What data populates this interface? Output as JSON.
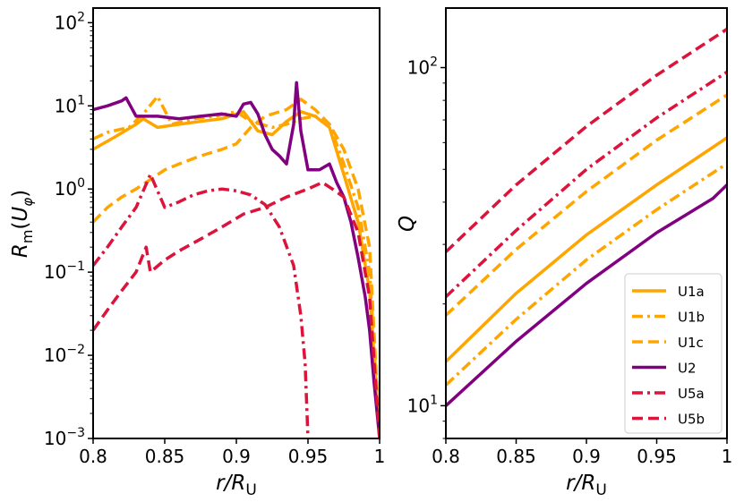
{
  "chart_data": [
    {
      "type": "line",
      "panel": "left",
      "xlabel": "r/R_U",
      "ylabel": "R_m(U_φ)",
      "yscale": "log",
      "xlim": [
        0.8,
        1.0
      ],
      "ylim": [
        0.001,
        150
      ],
      "x_ticks": [
        0.8,
        0.85,
        0.9,
        0.95,
        1.0
      ],
      "x_tick_labels": [
        "0.8",
        "0.85",
        "0.9",
        "0.95",
        "1"
      ],
      "y_ticks": [
        0.001,
        0.01,
        0.1,
        1,
        10,
        100
      ],
      "y_tick_labels": [
        {
          "base": "10",
          "exp": "−3"
        },
        {
          "base": "10",
          "exp": "−2"
        },
        {
          "base": "10",
          "exp": "−1"
        },
        {
          "base": "10",
          "exp": "0"
        },
        {
          "base": "10",
          "exp": "1"
        },
        {
          "base": "10",
          "exp": "2"
        }
      ],
      "series": [
        {
          "name": "U1a",
          "color": "#FFA500",
          "dash": "solid",
          "x": [
            0.8,
            0.815,
            0.83,
            0.835,
            0.845,
            0.86,
            0.875,
            0.89,
            0.905,
            0.915,
            0.925,
            0.935,
            0.945,
            0.955,
            0.965,
            0.975,
            0.985,
            0.993,
            1.0
          ],
          "y": [
            3.0,
            4.2,
            6.0,
            7.0,
            5.5,
            6.0,
            6.5,
            7.0,
            8.5,
            5.0,
            4.5,
            6.5,
            8.5,
            7.5,
            5.5,
            1.5,
            0.4,
            0.06,
            0.001
          ]
        },
        {
          "name": "U1b",
          "color": "#FFA500",
          "dash": "dashdot",
          "x": [
            0.8,
            0.81,
            0.825,
            0.835,
            0.845,
            0.855,
            0.87,
            0.885,
            0.9,
            0.91,
            0.925,
            0.935,
            0.945,
            0.955,
            0.965,
            0.975,
            0.985,
            0.993,
            1.0
          ],
          "y": [
            4.0,
            4.8,
            5.5,
            8.0,
            13.0,
            6.0,
            7.0,
            7.5,
            8.5,
            6.5,
            5.5,
            6.0,
            7.0,
            7.5,
            6.0,
            2.0,
            0.6,
            0.1,
            0.001
          ]
        },
        {
          "name": "U1c",
          "color": "#FFA500",
          "dash": "dashed",
          "x": [
            0.8,
            0.81,
            0.82,
            0.83,
            0.84,
            0.85,
            0.86,
            0.875,
            0.89,
            0.9,
            0.91,
            0.92,
            0.935,
            0.945,
            0.955,
            0.965,
            0.975,
            0.985,
            0.993,
            1.0
          ],
          "y": [
            0.4,
            0.6,
            0.8,
            1.0,
            1.3,
            1.7,
            2.0,
            2.5,
            3.0,
            3.5,
            5.5,
            7.5,
            9.0,
            12.0,
            9.0,
            6.0,
            3.0,
            1.0,
            0.2,
            0.001
          ]
        },
        {
          "name": "U2",
          "color": "#800080",
          "dash": "solid",
          "x": [
            0.8,
            0.81,
            0.82,
            0.823,
            0.83,
            0.845,
            0.86,
            0.875,
            0.89,
            0.9,
            0.905,
            0.91,
            0.915,
            0.92,
            0.925,
            0.93,
            0.935,
            0.94,
            0.942,
            0.945,
            0.95,
            0.958,
            0.965,
            0.97,
            0.975,
            0.98,
            0.985,
            0.99,
            0.993,
            0.996,
            1.0
          ],
          "y": [
            9.0,
            10.0,
            11.5,
            12.5,
            7.5,
            7.5,
            7.0,
            7.5,
            8.0,
            7.5,
            10.5,
            11.0,
            8.0,
            4.5,
            3.0,
            2.5,
            2.0,
            6.0,
            19.0,
            5.0,
            1.7,
            1.7,
            2.0,
            1.2,
            0.8,
            0.4,
            0.15,
            0.05,
            0.02,
            0.005,
            0.001
          ]
        },
        {
          "name": "U5a",
          "color": "#DC143C",
          "dash": "dashdot",
          "x": [
            0.8,
            0.81,
            0.82,
            0.83,
            0.84,
            0.85,
            0.86,
            0.87,
            0.88,
            0.89,
            0.9,
            0.91,
            0.92,
            0.93,
            0.94,
            0.945,
            0.948,
            0.95
          ],
          "y": [
            0.12,
            0.2,
            0.35,
            0.6,
            1.5,
            0.6,
            0.7,
            0.85,
            0.95,
            1.0,
            0.95,
            0.85,
            0.65,
            0.35,
            0.12,
            0.03,
            0.008,
            0.001
          ]
        },
        {
          "name": "U5b",
          "color": "#DC143C",
          "dash": "dashed",
          "x": [
            0.8,
            0.81,
            0.82,
            0.83,
            0.837,
            0.84,
            0.85,
            0.86,
            0.875,
            0.89,
            0.905,
            0.92,
            0.935,
            0.95,
            0.96,
            0.967,
            0.975,
            0.985,
            0.993,
            1.0
          ],
          "y": [
            0.02,
            0.035,
            0.06,
            0.1,
            0.2,
            0.1,
            0.14,
            0.18,
            0.25,
            0.35,
            0.5,
            0.6,
            0.8,
            1.0,
            1.2,
            1.0,
            0.8,
            0.3,
            0.05,
            0.001
          ]
        }
      ]
    },
    {
      "type": "line",
      "panel": "right",
      "xlabel": "r/R_U",
      "ylabel": "Q",
      "yscale": "log",
      "xlim": [
        0.8,
        1.0
      ],
      "ylim": [
        8,
        150
      ],
      "x_ticks": [
        0.8,
        0.85,
        0.9,
        0.95,
        1.0
      ],
      "x_tick_labels": [
        "0.8",
        "0.85",
        "0.9",
        "0.95",
        "1"
      ],
      "y_ticks": [
        10,
        100
      ],
      "y_tick_labels": [
        {
          "base": "10",
          "exp": "1"
        },
        {
          "base": "10",
          "exp": "2"
        }
      ],
      "legend_position": "bottom-right",
      "series": [
        {
          "name": "U1a",
          "color": "#FFA500",
          "dash": "solid",
          "x": [
            0.8,
            0.85,
            0.9,
            0.95,
            1.0
          ],
          "y": [
            13.5,
            21.5,
            32.0,
            45.0,
            62.0
          ]
        },
        {
          "name": "U1b",
          "color": "#FFA500",
          "dash": "dashdot",
          "x": [
            0.8,
            0.85,
            0.9,
            0.95,
            1.0
          ],
          "y": [
            11.5,
            18.0,
            27.0,
            38.0,
            52.0
          ]
        },
        {
          "name": "U1c",
          "color": "#FFA500",
          "dash": "dashed",
          "x": [
            0.8,
            0.85,
            0.9,
            0.95,
            1.0
          ],
          "y": [
            18.5,
            29.0,
            43.0,
            61.0,
            83.0
          ]
        },
        {
          "name": "U2",
          "color": "#800080",
          "dash": "solid",
          "x": [
            0.8,
            0.85,
            0.9,
            0.95,
            0.99,
            1.0
          ],
          "y": [
            10.0,
            15.5,
            23.0,
            32.5,
            41.0,
            45.0
          ]
        },
        {
          "name": "U5a",
          "color": "#DC143C",
          "dash": "dashdot",
          "x": [
            0.8,
            0.85,
            0.9,
            0.95,
            1.0
          ],
          "y": [
            21.0,
            33.0,
            50.0,
            71.0,
            97.0
          ]
        },
        {
          "name": "U5b",
          "color": "#DC143C",
          "dash": "dashed",
          "x": [
            0.8,
            0.85,
            0.9,
            0.95,
            1.0
          ],
          "y": [
            28.5,
            45.0,
            67.0,
            95.0,
            130.0
          ]
        }
      ],
      "legend": [
        "U1a",
        "U1b",
        "U1c",
        "U2",
        "U5a",
        "U5b"
      ]
    }
  ]
}
